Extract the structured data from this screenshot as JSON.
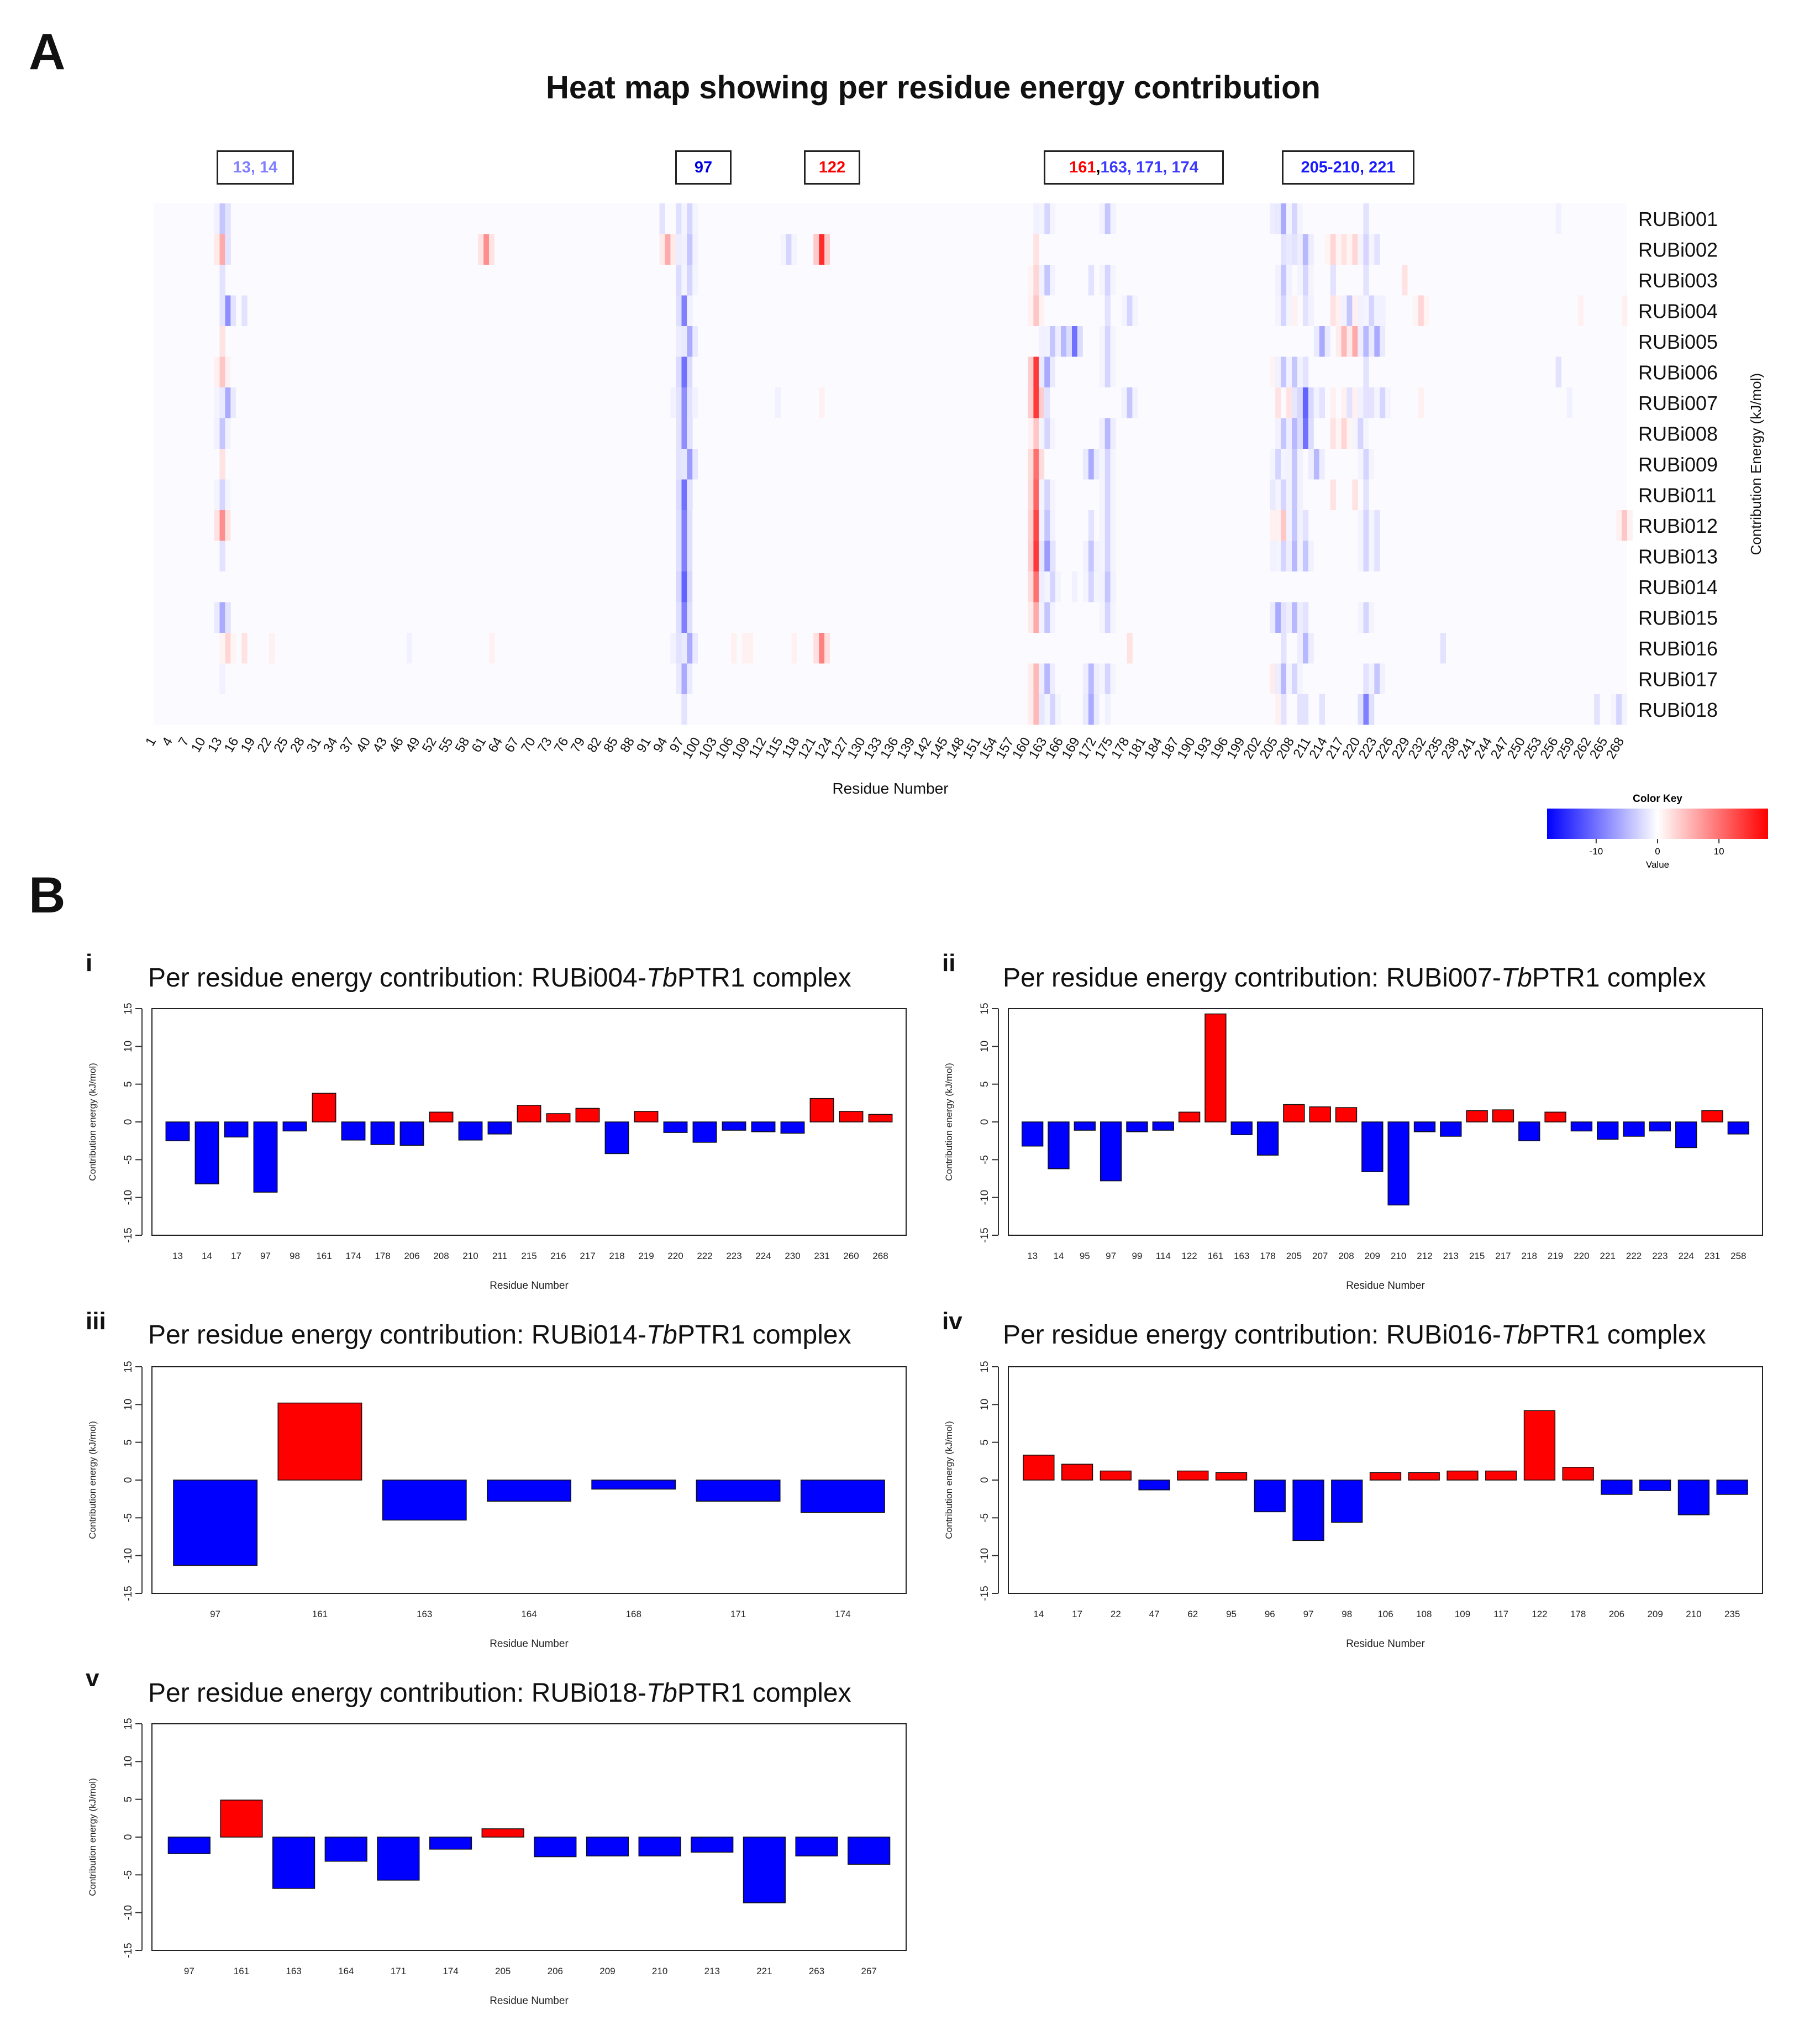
{
  "panel_a": {
    "letter": "A",
    "highlight_groups": [
      {
        "parts": [
          {
            "text": "13, 14",
            "color": "#8080ff"
          }
        ]
      },
      {
        "parts": [
          {
            "text": "97",
            "color": "#0000dd"
          }
        ]
      },
      {
        "parts": [
          {
            "text": "122",
            "color": "#ff0000"
          }
        ]
      },
      {
        "parts": [
          {
            "text": "161",
            "color": "#ff0000"
          },
          {
            "text": ", ",
            "color": "#000000"
          },
          {
            "text": "163, 171, 174",
            "color": "#3a3aff"
          }
        ]
      },
      {
        "parts": [
          {
            "text": "205-210, 221",
            "color": "#1a1aff"
          }
        ]
      }
    ]
  },
  "panel_b": {
    "letter": "B",
    "charts": [
      {
        "label": "i",
        "title_pre": "Per residue energy contribution: RUBi004-",
        "title_italic": "Tb",
        "title_post": "PTR1 complex"
      },
      {
        "label": "ii",
        "title_pre": "Per residue energy contribution: RUBi007-",
        "title_italic": "Tb",
        "title_post": "PTR1 complex"
      },
      {
        "label": "iii",
        "title_pre": "Per residue energy contribution: RUBi014-",
        "title_italic": "Tb",
        "title_post": "PTR1 complex"
      },
      {
        "label": "iv",
        "title_pre": "Per residue energy contribution: RUBi016-",
        "title_italic": "Tb",
        "title_post": "PTR1 complex"
      },
      {
        "label": "v",
        "title_pre": "Per residue energy contribution: RUBi018-",
        "title_italic": "Tb",
        "title_post": "PTR1 complex"
      }
    ]
  },
  "colors": {
    "negative": "#0000ff",
    "positive": "#ff0000",
    "neutral": "#ffffff"
  },
  "chart_data": [
    {
      "type": "heatmap",
      "title": "Heat map showing per residue energy contribution",
      "xlabel": "Residue Number",
      "ylabel": "Contribution Energy (kJ/mol)",
      "x_tick_labels": [
        1,
        4,
        7,
        10,
        13,
        16,
        19,
        22,
        25,
        28,
        31,
        34,
        37,
        40,
        43,
        46,
        49,
        52,
        55,
        58,
        61,
        64,
        67,
        70,
        73,
        76,
        79,
        82,
        85,
        88,
        91,
        94,
        97,
        100,
        103,
        106,
        109,
        112,
        115,
        118,
        121,
        124,
        127,
        130,
        133,
        136,
        139,
        142,
        145,
        148,
        151,
        154,
        157,
        160,
        163,
        166,
        169,
        172,
        175,
        178,
        181,
        184,
        187,
        190,
        193,
        196,
        199,
        202,
        205,
        208,
        211,
        214,
        217,
        220,
        223,
        226,
        229,
        232,
        235,
        238,
        241,
        244,
        247,
        250,
        253,
        256,
        259,
        262,
        265,
        268
      ],
      "x_range": [
        1,
        268
      ],
      "rows": [
        "RUBi001",
        "RUBi002",
        "RUBi003",
        "RUBi004",
        "RUBi005",
        "RUBi006",
        "RUBi007",
        "RUBi008",
        "RUBi009",
        "RUBi011",
        "RUBi012",
        "RUBi013",
        "RUBi014",
        "RUBi015",
        "RUBi016",
        "RUBi017",
        "RUBi018"
      ],
      "cells": [
        {
          "row": "RUBi001",
          "values": {
            "13": -4,
            "14": -2,
            "93": -2,
            "97": -9,
            "98": -3,
            "161": -1,
            "163": -3,
            "174": -4,
            "205": -5,
            "206": -6,
            "208": -3,
            "221": -2,
            "256": -1
          }
        },
        {
          "row": "RUBi002",
          "values": {
            "13": 6,
            "14": -2,
            "61": 8,
            "94": 6,
            "97": -5,
            "98": -4,
            "116": -3,
            "122": 15,
            "161": 2,
            "206": -2,
            "208": -6,
            "209": -8,
            "210": -5,
            "215": 3,
            "217": 2,
            "219": 3,
            "221": -3,
            "223": -2
          }
        },
        {
          "row": "RUBi003",
          "values": {
            "13": -2,
            "97": -10,
            "98": -3,
            "161": 3,
            "163": -4,
            "171": -2,
            "174": -3,
            "206": -4,
            "210": -3,
            "215": -2,
            "221": -2,
            "228": 2
          }
        },
        {
          "row": "RUBi004",
          "values": {
            "13": -2,
            "14": -8,
            "17": -2,
            "97": -9,
            "98": -1,
            "161": 4,
            "174": -2,
            "178": -3,
            "206": -3,
            "208": 1,
            "210": -2,
            "211": -1,
            "215": 2,
            "216": 1,
            "217": 2,
            "218": -4,
            "219": 1,
            "220": -1,
            "222": -3,
            "223": -1,
            "224": -1,
            "230": -1,
            "231": 3,
            "260": 1,
            "268": 1
          }
        },
        {
          "row": "RUBi005",
          "values": {
            "13": 2,
            "97": -5,
            "98": -6,
            "163": -4,
            "164": -4,
            "166": -5,
            "168": -10,
            "174": -3,
            "213": -6,
            "217": 5,
            "219": 6,
            "221": -5,
            "223": -6
          }
        },
        {
          "row": "RUBi006",
          "values": {
            "13": 4,
            "97": -10,
            "161": 14,
            "163": -6,
            "174": -3,
            "205": 3,
            "206": -4,
            "208": -4,
            "210": -2,
            "221": -2,
            "256": -2
          }
        },
        {
          "row": "RUBi007",
          "values": {
            "13": -3,
            "14": -6,
            "95": -1,
            "97": -8,
            "99": -1,
            "114": -1,
            "122": 1,
            "161": 14,
            "163": -2,
            "178": -4,
            "205": 2,
            "207": 2,
            "208": 2,
            "209": -7,
            "210": -11,
            "212": -1,
            "213": -2,
            "215": 1,
            "217": 1,
            "218": -2,
            "219": 1,
            "220": -1,
            "221": -2,
            "222": -2,
            "223": -1,
            "224": -3,
            "231": 1,
            "258": -1
          }
        },
        {
          "row": "RUBi008",
          "values": {
            "13": -4,
            "97": -8,
            "98": -2,
            "161": 4,
            "163": -3,
            "174": -5,
            "205": 2,
            "206": -4,
            "208": -5,
            "210": -10,
            "215": 2,
            "217": 3,
            "220": -3
          }
        },
        {
          "row": "RUBi009",
          "values": {
            "13": 2,
            "97": -8,
            "98": -7,
            "161": 10,
            "171": -6,
            "174": -3,
            "205": -3,
            "208": -4,
            "212": -5,
            "221": -3
          }
        },
        {
          "row": "RUBi011",
          "values": {
            "13": -3,
            "97": -10,
            "98": -2,
            "161": 11,
            "163": -3,
            "174": -3,
            "205": -6,
            "206": -3,
            "208": -4,
            "215": 2,
            "219": 2,
            "221": -2
          }
        },
        {
          "row": "RUBi012",
          "values": {
            "13": 8,
            "97": -9,
            "161": 13,
            "163": -4,
            "171": -2,
            "174": -3,
            "205": 4,
            "206": 4,
            "208": -4,
            "210": -2,
            "221": -3,
            "223": -2,
            "268": 4
          }
        },
        {
          "row": "RUBi013",
          "values": {
            "13": -2,
            "97": -9,
            "161": 14,
            "163": -7,
            "164": -2,
            "171": -4,
            "174": -3,
            "205": -4,
            "206": -3,
            "208": -5,
            "210": -4,
            "221": -3,
            "223": -2
          }
        },
        {
          "row": "RUBi014",
          "values": {
            "97": -11,
            "161": 10,
            "163": -5,
            "164": -3,
            "168": -1,
            "171": -3,
            "174": -4
          }
        },
        {
          "row": "RUBi015",
          "values": {
            "13": -6,
            "14": -2,
            "97": -9,
            "161": 6,
            "163": -4,
            "174": -3,
            "205": -6,
            "206": -2,
            "208": -5,
            "210": -2,
            "221": -3
          }
        },
        {
          "row": "RUBi016",
          "values": {
            "14": 3,
            "17": 2,
            "22": 1,
            "47": -1,
            "62": 1,
            "95": 1,
            "96": -4,
            "97": -8,
            "98": -6,
            "106": 1,
            "108": 1,
            "109": 1,
            "117": 1,
            "122": 9,
            "178": 2,
            "206": -2,
            "209": -1,
            "210": -5,
            "235": -2
          }
        },
        {
          "row": "RUBi017",
          "values": {
            "13": -1,
            "97": -6,
            "161": 5,
            "163": -5,
            "171": -5,
            "174": -3,
            "205": 5,
            "206": -5,
            "208": -3,
            "221": -2,
            "223": -4
          }
        },
        {
          "row": "RUBi018",
          "values": {
            "97": -2,
            "161": 5,
            "163": -7,
            "164": -3,
            "171": -6,
            "174": -1,
            "205": 1,
            "206": -2,
            "209": -2,
            "210": -2,
            "213": -2,
            "221": -9,
            "263": -2,
            "267": -3
          }
        }
      ],
      "color_key": {
        "title": "Color Key",
        "xlabel": "Value",
        "ticks": [
          -10,
          0,
          10
        ],
        "range": [
          -18,
          18
        ]
      }
    },
    {
      "type": "bar",
      "panel": "i",
      "categories": [
        "13",
        "14",
        "17",
        "97",
        "98",
        "161",
        "174",
        "178",
        "206",
        "208",
        "210",
        "211",
        "215",
        "216",
        "217",
        "218",
        "219",
        "220",
        "222",
        "223",
        "224",
        "230",
        "231",
        "260",
        "268"
      ],
      "values": [
        -2.5,
        -8.2,
        -2.0,
        -9.3,
        -1.2,
        3.8,
        -2.4,
        -3.0,
        -3.1,
        1.3,
        -2.4,
        -1.6,
        2.2,
        1.1,
        1.8,
        -4.2,
        1.4,
        -1.4,
        -2.7,
        -1.1,
        -1.3,
        -1.5,
        3.1,
        1.4,
        1.0
      ],
      "xlabel": "Residue Number",
      "ylabel": "Contribution energy (kJ/mol)",
      "ylim": [
        -15,
        15
      ],
      "yticks": [
        -15,
        -10,
        -5,
        0,
        5,
        10,
        15
      ]
    },
    {
      "type": "bar",
      "panel": "ii",
      "categories": [
        "13",
        "14",
        "95",
        "97",
        "99",
        "114",
        "122",
        "161",
        "163",
        "178",
        "205",
        "207",
        "208",
        "209",
        "210",
        "212",
        "213",
        "215",
        "217",
        "218",
        "219",
        "220",
        "221",
        "222",
        "223",
        "224",
        "231",
        "258"
      ],
      "values": [
        -3.2,
        -6.2,
        -1.1,
        -7.8,
        -1.3,
        -1.1,
        1.3,
        14.3,
        -1.7,
        -4.4,
        2.3,
        2.0,
        1.9,
        -6.6,
        -11.0,
        -1.3,
        -1.9,
        1.5,
        1.6,
        -2.5,
        1.3,
        -1.2,
        -2.3,
        -1.9,
        -1.2,
        -3.4,
        1.5,
        -1.6
      ],
      "xlabel": "Residue Number",
      "ylabel": "Contribution energy (kJ/mol)",
      "ylim": [
        -15,
        15
      ],
      "yticks": [
        -15,
        -10,
        -5,
        0,
        5,
        10,
        15
      ]
    },
    {
      "type": "bar",
      "panel": "iii",
      "categories": [
        "97",
        "161",
        "163",
        "164",
        "168",
        "171",
        "174"
      ],
      "values": [
        -11.3,
        10.2,
        -5.3,
        -2.8,
        -1.2,
        -2.8,
        -4.3
      ],
      "xlabel": "Residue Number",
      "ylabel": "Contribution energy (kJ/mol)",
      "ylim": [
        -15,
        15
      ],
      "yticks": [
        -15,
        -10,
        -5,
        0,
        5,
        10,
        15
      ]
    },
    {
      "type": "bar",
      "panel": "iv",
      "categories": [
        "14",
        "17",
        "22",
        "47",
        "62",
        "95",
        "96",
        "97",
        "98",
        "106",
        "108",
        "109",
        "117",
        "122",
        "178",
        "206",
        "209",
        "210",
        "235"
      ],
      "values": [
        3.3,
        2.1,
        1.2,
        -1.3,
        1.2,
        1.0,
        -4.2,
        -8.0,
        -5.6,
        1.0,
        1.0,
        1.2,
        1.2,
        9.2,
        1.7,
        -1.9,
        -1.4,
        -4.6,
        -1.9
      ],
      "xlabel": "Residue Number",
      "ylabel": "Contribution energy (kJ/mol)",
      "ylim": [
        -15,
        15
      ],
      "yticks": [
        -15,
        -10,
        -5,
        0,
        5,
        10,
        15
      ]
    },
    {
      "type": "bar",
      "panel": "v",
      "categories": [
        "97",
        "161",
        "163",
        "164",
        "171",
        "174",
        "205",
        "206",
        "209",
        "210",
        "213",
        "221",
        "263",
        "267"
      ],
      "values": [
        -2.2,
        4.9,
        -6.8,
        -3.2,
        -5.7,
        -1.6,
        1.1,
        -2.6,
        -2.5,
        -2.5,
        -2.0,
        -8.7,
        -2.5,
        -3.6
      ],
      "xlabel": "Residue Number",
      "ylabel": "Contribution energy (kJ/mol)",
      "ylim": [
        -15,
        15
      ],
      "yticks": [
        -15,
        -10,
        -5,
        0,
        5,
        10,
        15
      ]
    }
  ]
}
